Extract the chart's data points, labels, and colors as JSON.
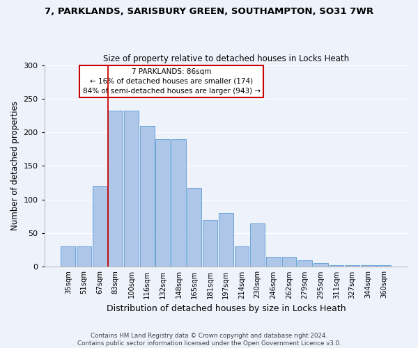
{
  "title_line1": "7, PARKLANDS, SARISBURY GREEN, SOUTHAMPTON, SO31 7WR",
  "title_line2": "Size of property relative to detached houses in Locks Heath",
  "xlabel": "Distribution of detached houses by size in Locks Heath",
  "ylabel": "Number of detached properties",
  "footer_line1": "Contains HM Land Registry data © Crown copyright and database right 2024.",
  "footer_line2": "Contains public sector information licensed under the Open Government Licence v3.0.",
  "annotation_line1": "7 PARKLANDS: 86sqm",
  "annotation_line2": "← 16% of detached houses are smaller (174)",
  "annotation_line3": "84% of semi-detached houses are larger (943) →",
  "bar_labels": [
    "35sqm",
    "51sqm",
    "67sqm",
    "83sqm",
    "100sqm",
    "116sqm",
    "132sqm",
    "148sqm",
    "165sqm",
    "181sqm",
    "197sqm",
    "214sqm",
    "230sqm",
    "246sqm",
    "262sqm",
    "279sqm",
    "295sqm",
    "311sqm",
    "327sqm",
    "344sqm",
    "360sqm"
  ],
  "bar_values": [
    30,
    30,
    120,
    232,
    232,
    210,
    190,
    190,
    117,
    70,
    80,
    30,
    65,
    15,
    15,
    10,
    6,
    3,
    3,
    2,
    2
  ],
  "bar_color": "#aec6e8",
  "bar_edge_color": "#5b9bd5",
  "red_line_index": 3,
  "red_line_color": "#cc0000",
  "ylim": [
    0,
    300
  ],
  "yticks": [
    0,
    50,
    100,
    150,
    200,
    250,
    300
  ],
  "background_color": "#eef2fb",
  "annotation_box_color": "white",
  "annotation_box_edge": "#cc0000",
  "fig_width": 6.0,
  "fig_height": 5.0,
  "dpi": 100
}
